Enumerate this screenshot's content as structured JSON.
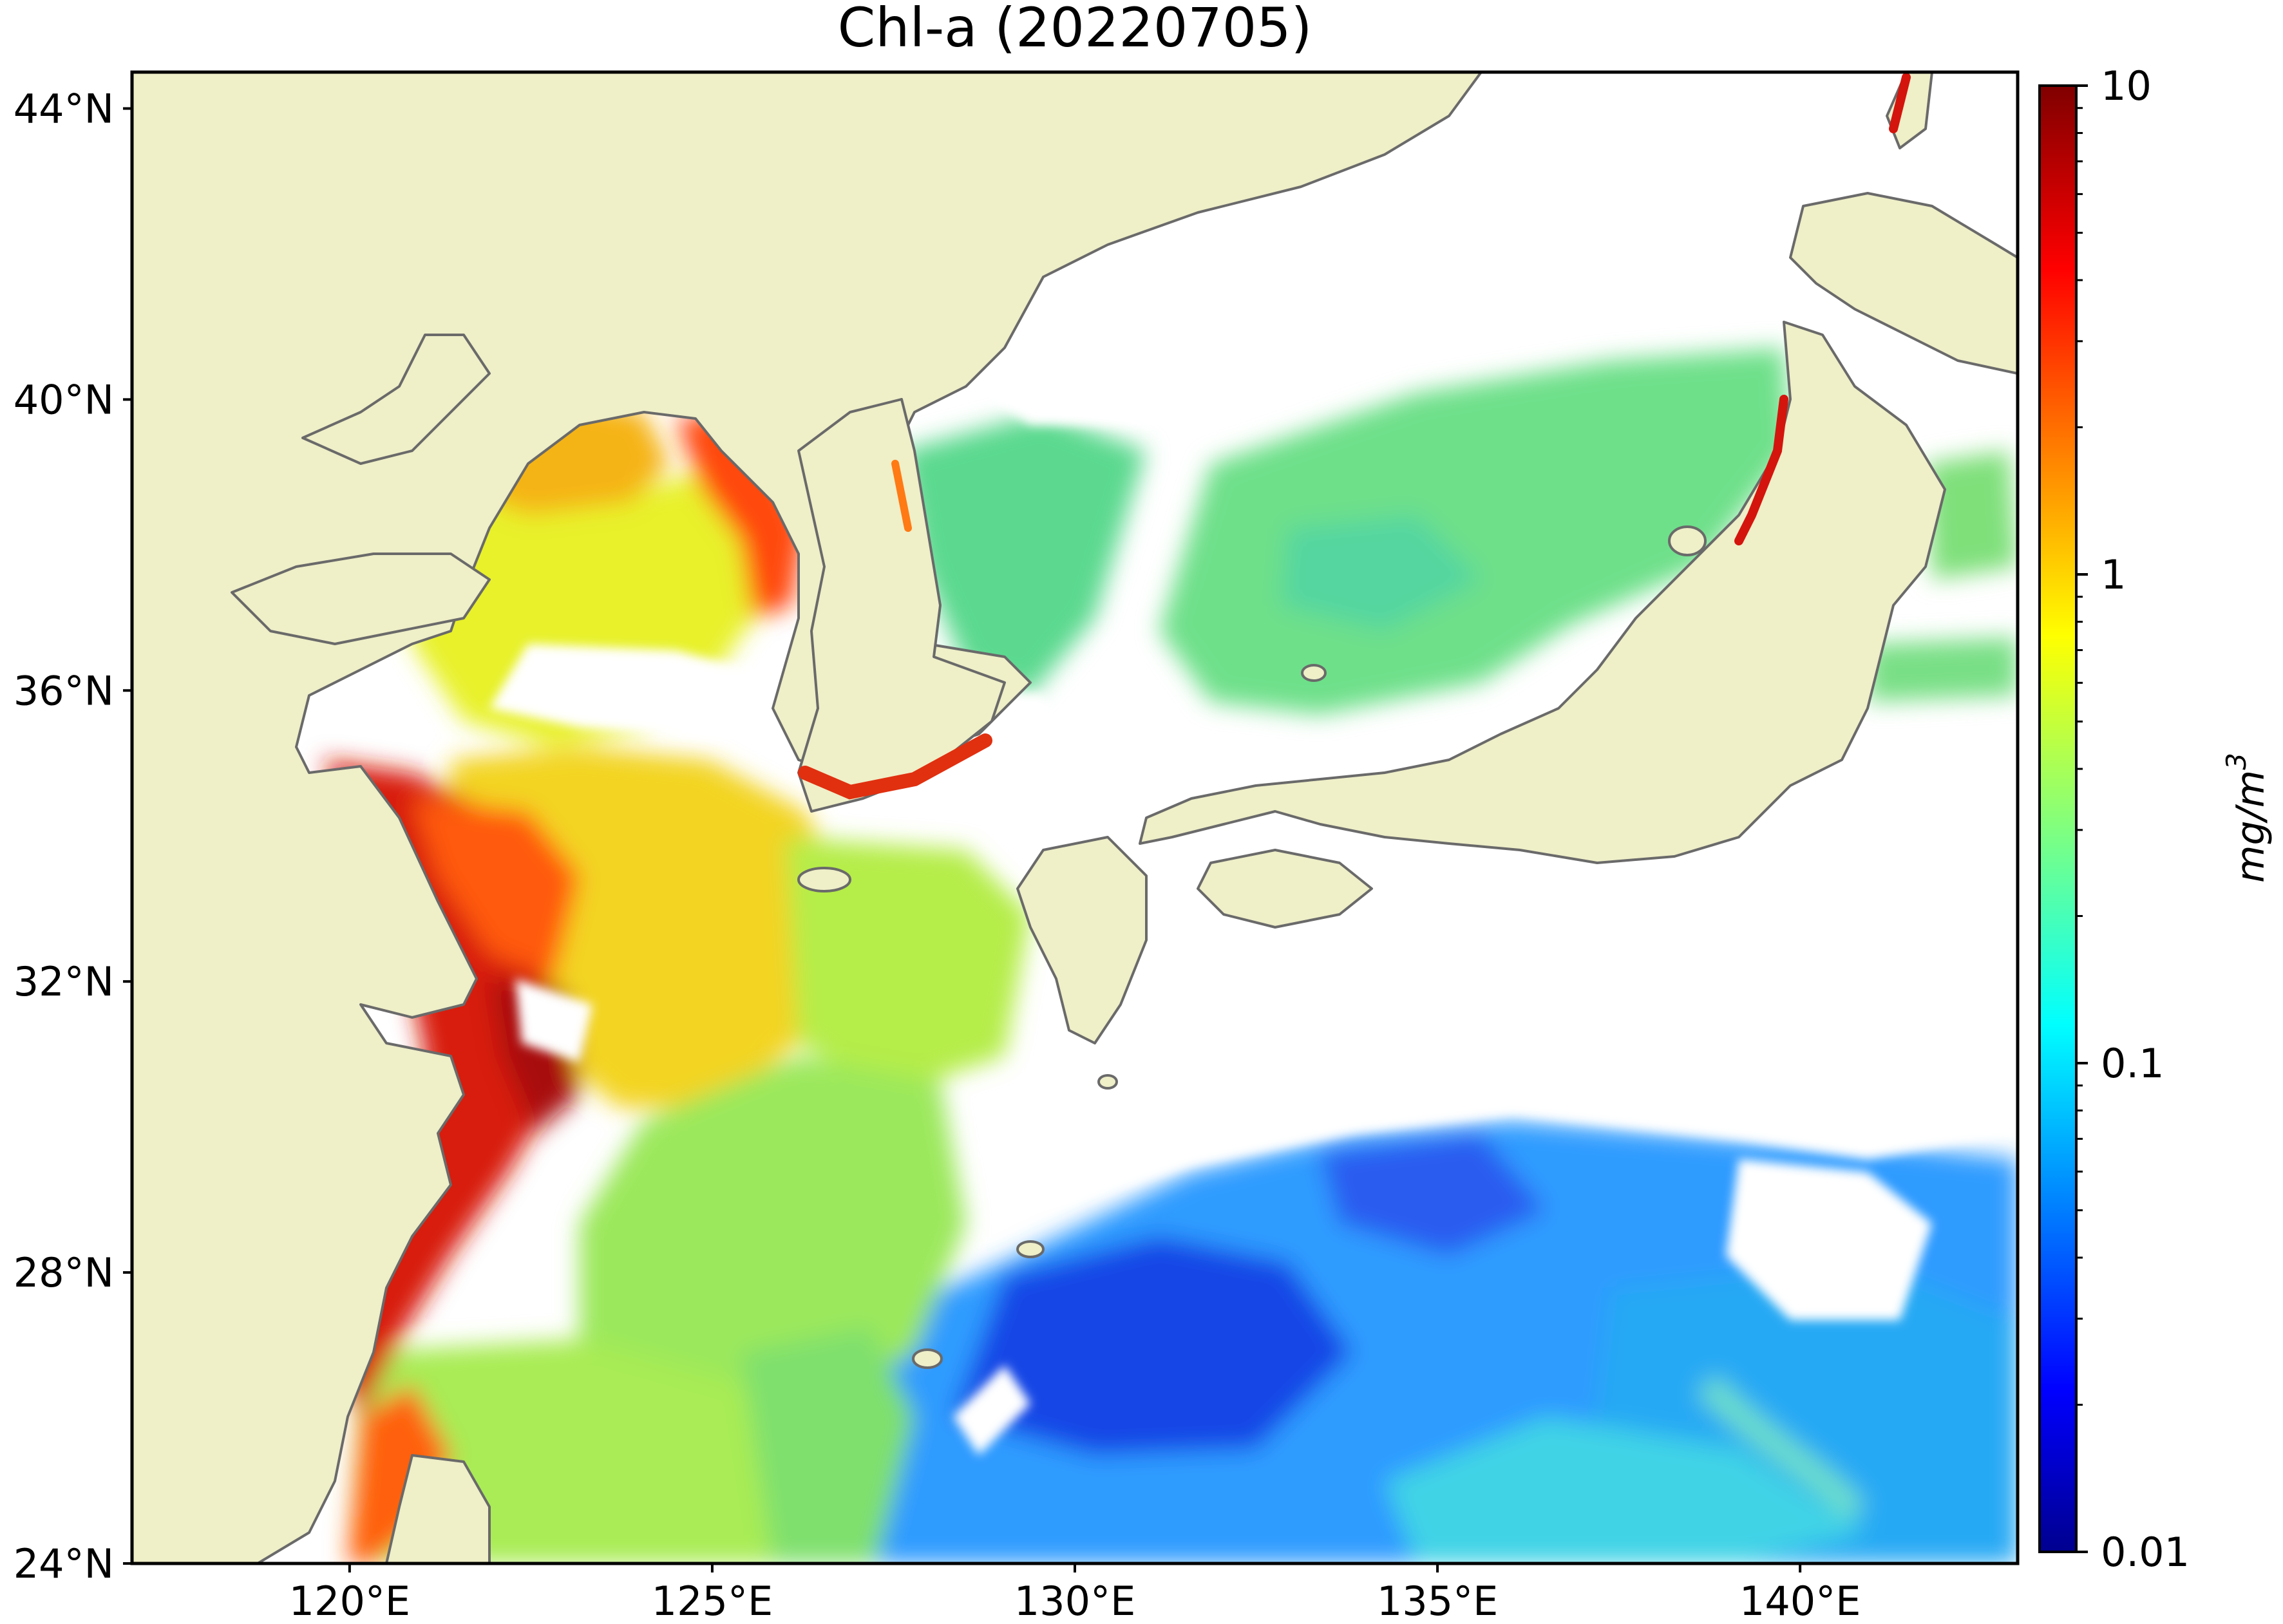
{
  "title": "Chl-a (20220705)",
  "map": {
    "lon_range": [
      117,
      143
    ],
    "lat_range": [
      24,
      44.5
    ],
    "lat_ticks": [
      {
        "value": 44,
        "label": "44°N"
      },
      {
        "value": 40,
        "label": "40°N"
      },
      {
        "value": 36,
        "label": "36°N"
      },
      {
        "value": 32,
        "label": "32°N"
      },
      {
        "value": 28,
        "label": "28°N"
      },
      {
        "value": 24,
        "label": "24°N"
      }
    ],
    "lon_ticks": [
      {
        "value": 120,
        "label": "120°E"
      },
      {
        "value": 125,
        "label": "125°E"
      },
      {
        "value": 130,
        "label": "130°E"
      },
      {
        "value": 135,
        "label": "135°E"
      },
      {
        "value": 140,
        "label": "140°E"
      }
    ],
    "colors": {
      "land": "#efefc8",
      "cloud": "#ffffff",
      "coastline": "#6a6a6a"
    }
  },
  "colorbar": {
    "unit_label": "mg/m",
    "unit_superscript": "3",
    "scale": "log",
    "range": [
      0.01,
      10
    ],
    "colormap": "jet",
    "ticks": [
      {
        "value": 10,
        "label": "10"
      },
      {
        "value": 1,
        "label": "1"
      },
      {
        "value": 0.1,
        "label": "0.1"
      },
      {
        "value": 0.01,
        "label": "0.01"
      }
    ]
  }
}
